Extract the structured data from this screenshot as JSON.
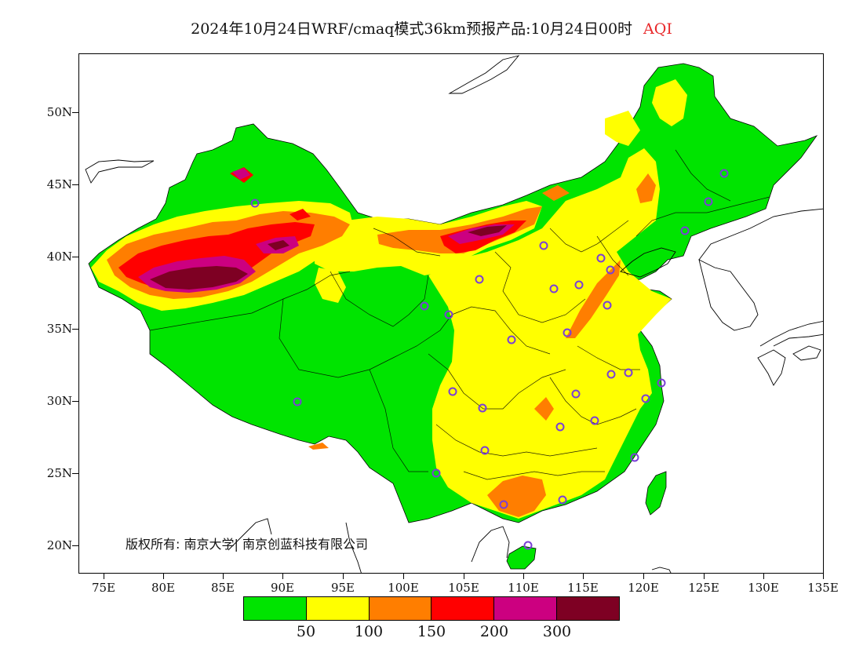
{
  "title": {
    "main": "2024年10月24日WRF/cmaq模式36km预报产品:10月24日00时",
    "pollutant": "AQI"
  },
  "axes": {
    "y_ticks": [
      "50N",
      "45N",
      "40N",
      "35N",
      "30N",
      "25N",
      "20N"
    ],
    "x_ticks": [
      "75E",
      "80E",
      "85E",
      "90E",
      "95E",
      "100E",
      "105E",
      "110E",
      "115E",
      "120E",
      "125E",
      "130E",
      "135E"
    ]
  },
  "copyright": "版权所有: 南京大学| 南京创蓝科技有限公司",
  "legend": {
    "colors": [
      "#00e400",
      "#ffff00",
      "#ff7e00",
      "#ff0000",
      "#cc0080",
      "#7e0023"
    ],
    "labels": [
      "50",
      "100",
      "150",
      "200",
      "300"
    ]
  }
}
